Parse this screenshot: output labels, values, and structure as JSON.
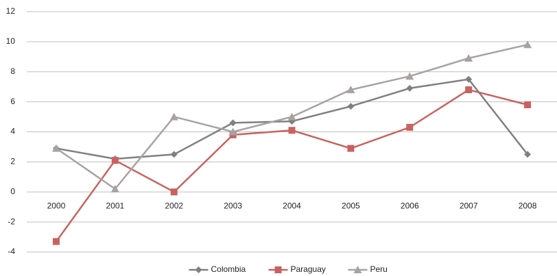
{
  "chart_data": {
    "type": "line",
    "categories": [
      "2000",
      "2001",
      "2002",
      "2003",
      "2004",
      "2005",
      "2006",
      "2007",
      "2008"
    ],
    "series": [
      {
        "name": "Colombia",
        "color": "#808080",
        "marker": "diamond",
        "values": [
          2.9,
          2.2,
          2.5,
          4.6,
          4.7,
          5.7,
          6.9,
          7.5,
          2.5
        ]
      },
      {
        "name": "Paraguay",
        "color": "#c9625f",
        "marker": "square",
        "values": [
          -3.3,
          2.1,
          0,
          3.8,
          4.1,
          2.9,
          4.3,
          6.8,
          5.8
        ]
      },
      {
        "name": "Peru",
        "color": "#a8a2a2",
        "marker": "triangle",
        "values": [
          2.9,
          0.2,
          5.0,
          4.0,
          5.0,
          6.8,
          7.7,
          8.9,
          9.8
        ]
      }
    ],
    "ylim": [
      -4,
      12
    ],
    "yticks": [
      -4,
      -2,
      0,
      2,
      4,
      6,
      8,
      10,
      12
    ],
    "grid": true,
    "legend": "bottom"
  }
}
